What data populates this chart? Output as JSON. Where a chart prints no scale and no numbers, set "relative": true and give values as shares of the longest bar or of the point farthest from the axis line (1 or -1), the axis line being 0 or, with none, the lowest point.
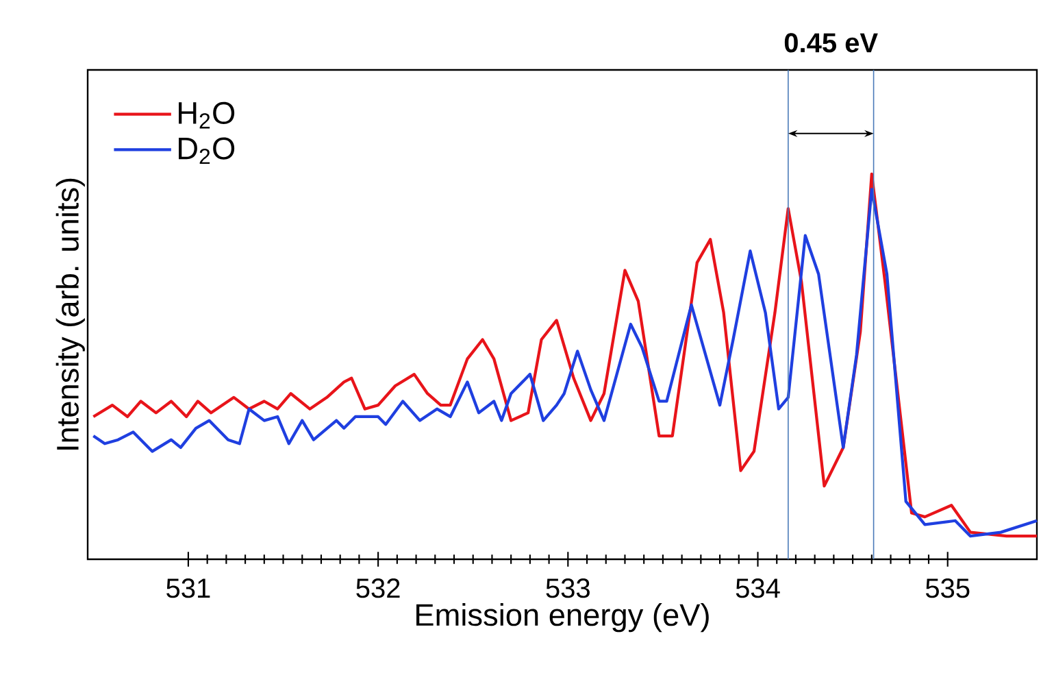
{
  "chart_data": {
    "type": "line",
    "relative": true,
    "xlabel": "Emission energy (eV)",
    "ylabel": "Intensity (arb. units)",
    "xlim": [
      530.47,
      535.47
    ],
    "xticks": [
      531,
      532,
      533,
      534,
      535
    ],
    "legend": "top left",
    "grid": false,
    "series": [
      {
        "name": "H$_{2}$O",
        "color": "#e8141a",
        "x": [
          530.5,
          530.6,
          530.68,
          530.75,
          530.83,
          530.91,
          530.99,
          531.05,
          531.12,
          531.24,
          531.32,
          531.4,
          531.47,
          531.54,
          531.64,
          531.73,
          531.82,
          531.86,
          531.93,
          532.0,
          532.09,
          532.19,
          532.26,
          532.33,
          532.38,
          532.47,
          532.55,
          532.61,
          532.7,
          532.79,
          532.86,
          532.94,
          533.03,
          533.12,
          533.19,
          533.3,
          533.37,
          533.48,
          533.55,
          533.68,
          533.75,
          533.82,
          533.91,
          533.98,
          534.09,
          534.16,
          534.23,
          534.35,
          534.45,
          534.54,
          534.6,
          534.67,
          534.81,
          534.88,
          535.02,
          535.12,
          535.31,
          535.47
        ],
        "values": [
          0.37,
          0.4,
          0.37,
          0.41,
          0.38,
          0.41,
          0.37,
          0.41,
          0.38,
          0.42,
          0.39,
          0.41,
          0.39,
          0.43,
          0.39,
          0.42,
          0.46,
          0.47,
          0.39,
          0.4,
          0.45,
          0.48,
          0.43,
          0.4,
          0.4,
          0.52,
          0.57,
          0.52,
          0.36,
          0.38,
          0.57,
          0.62,
          0.47,
          0.36,
          0.43,
          0.75,
          0.67,
          0.32,
          0.32,
          0.77,
          0.83,
          0.64,
          0.23,
          0.28,
          0.64,
          0.91,
          0.72,
          0.19,
          0.29,
          0.59,
          1.0,
          0.72,
          0.12,
          0.11,
          0.14,
          0.07,
          0.06,
          0.06
        ]
      },
      {
        "name": "D$_{2}$O",
        "color": "#1f3fe0",
        "x": [
          530.5,
          530.56,
          530.63,
          530.71,
          530.81,
          530.91,
          530.96,
          531.04,
          531.11,
          531.21,
          531.27,
          531.32,
          531.4,
          531.47,
          531.53,
          531.6,
          531.66,
          531.78,
          531.82,
          531.88,
          532.0,
          532.04,
          532.13,
          532.22,
          532.31,
          532.38,
          532.47,
          532.53,
          532.61,
          532.65,
          532.7,
          532.8,
          532.87,
          532.94,
          532.98,
          533.05,
          533.12,
          533.19,
          533.33,
          533.39,
          533.48,
          533.52,
          533.65,
          533.8,
          533.87,
          533.96,
          534.04,
          534.11,
          534.16,
          534.25,
          534.32,
          534.45,
          534.52,
          534.6,
          534.68,
          534.78,
          534.88,
          535.04,
          535.12,
          535.28,
          535.47
        ],
        "values": [
          0.32,
          0.3,
          0.31,
          0.33,
          0.28,
          0.31,
          0.29,
          0.34,
          0.36,
          0.31,
          0.3,
          0.39,
          0.36,
          0.37,
          0.3,
          0.36,
          0.31,
          0.36,
          0.34,
          0.37,
          0.37,
          0.35,
          0.41,
          0.36,
          0.39,
          0.37,
          0.46,
          0.38,
          0.41,
          0.36,
          0.43,
          0.48,
          0.36,
          0.4,
          0.43,
          0.54,
          0.44,
          0.36,
          0.61,
          0.55,
          0.41,
          0.41,
          0.66,
          0.4,
          0.57,
          0.8,
          0.64,
          0.39,
          0.42,
          0.84,
          0.74,
          0.29,
          0.53,
          0.96,
          0.74,
          0.15,
          0.09,
          0.1,
          0.06,
          0.07,
          0.1
        ]
      }
    ],
    "ref_lines": [
      {
        "axis": "x",
        "value": 534.16,
        "color": "#4a7ab8"
      },
      {
        "axis": "x",
        "value": 534.61,
        "color": "#4a7ab8"
      }
    ],
    "annotations": [
      "0.45 eV"
    ]
  }
}
